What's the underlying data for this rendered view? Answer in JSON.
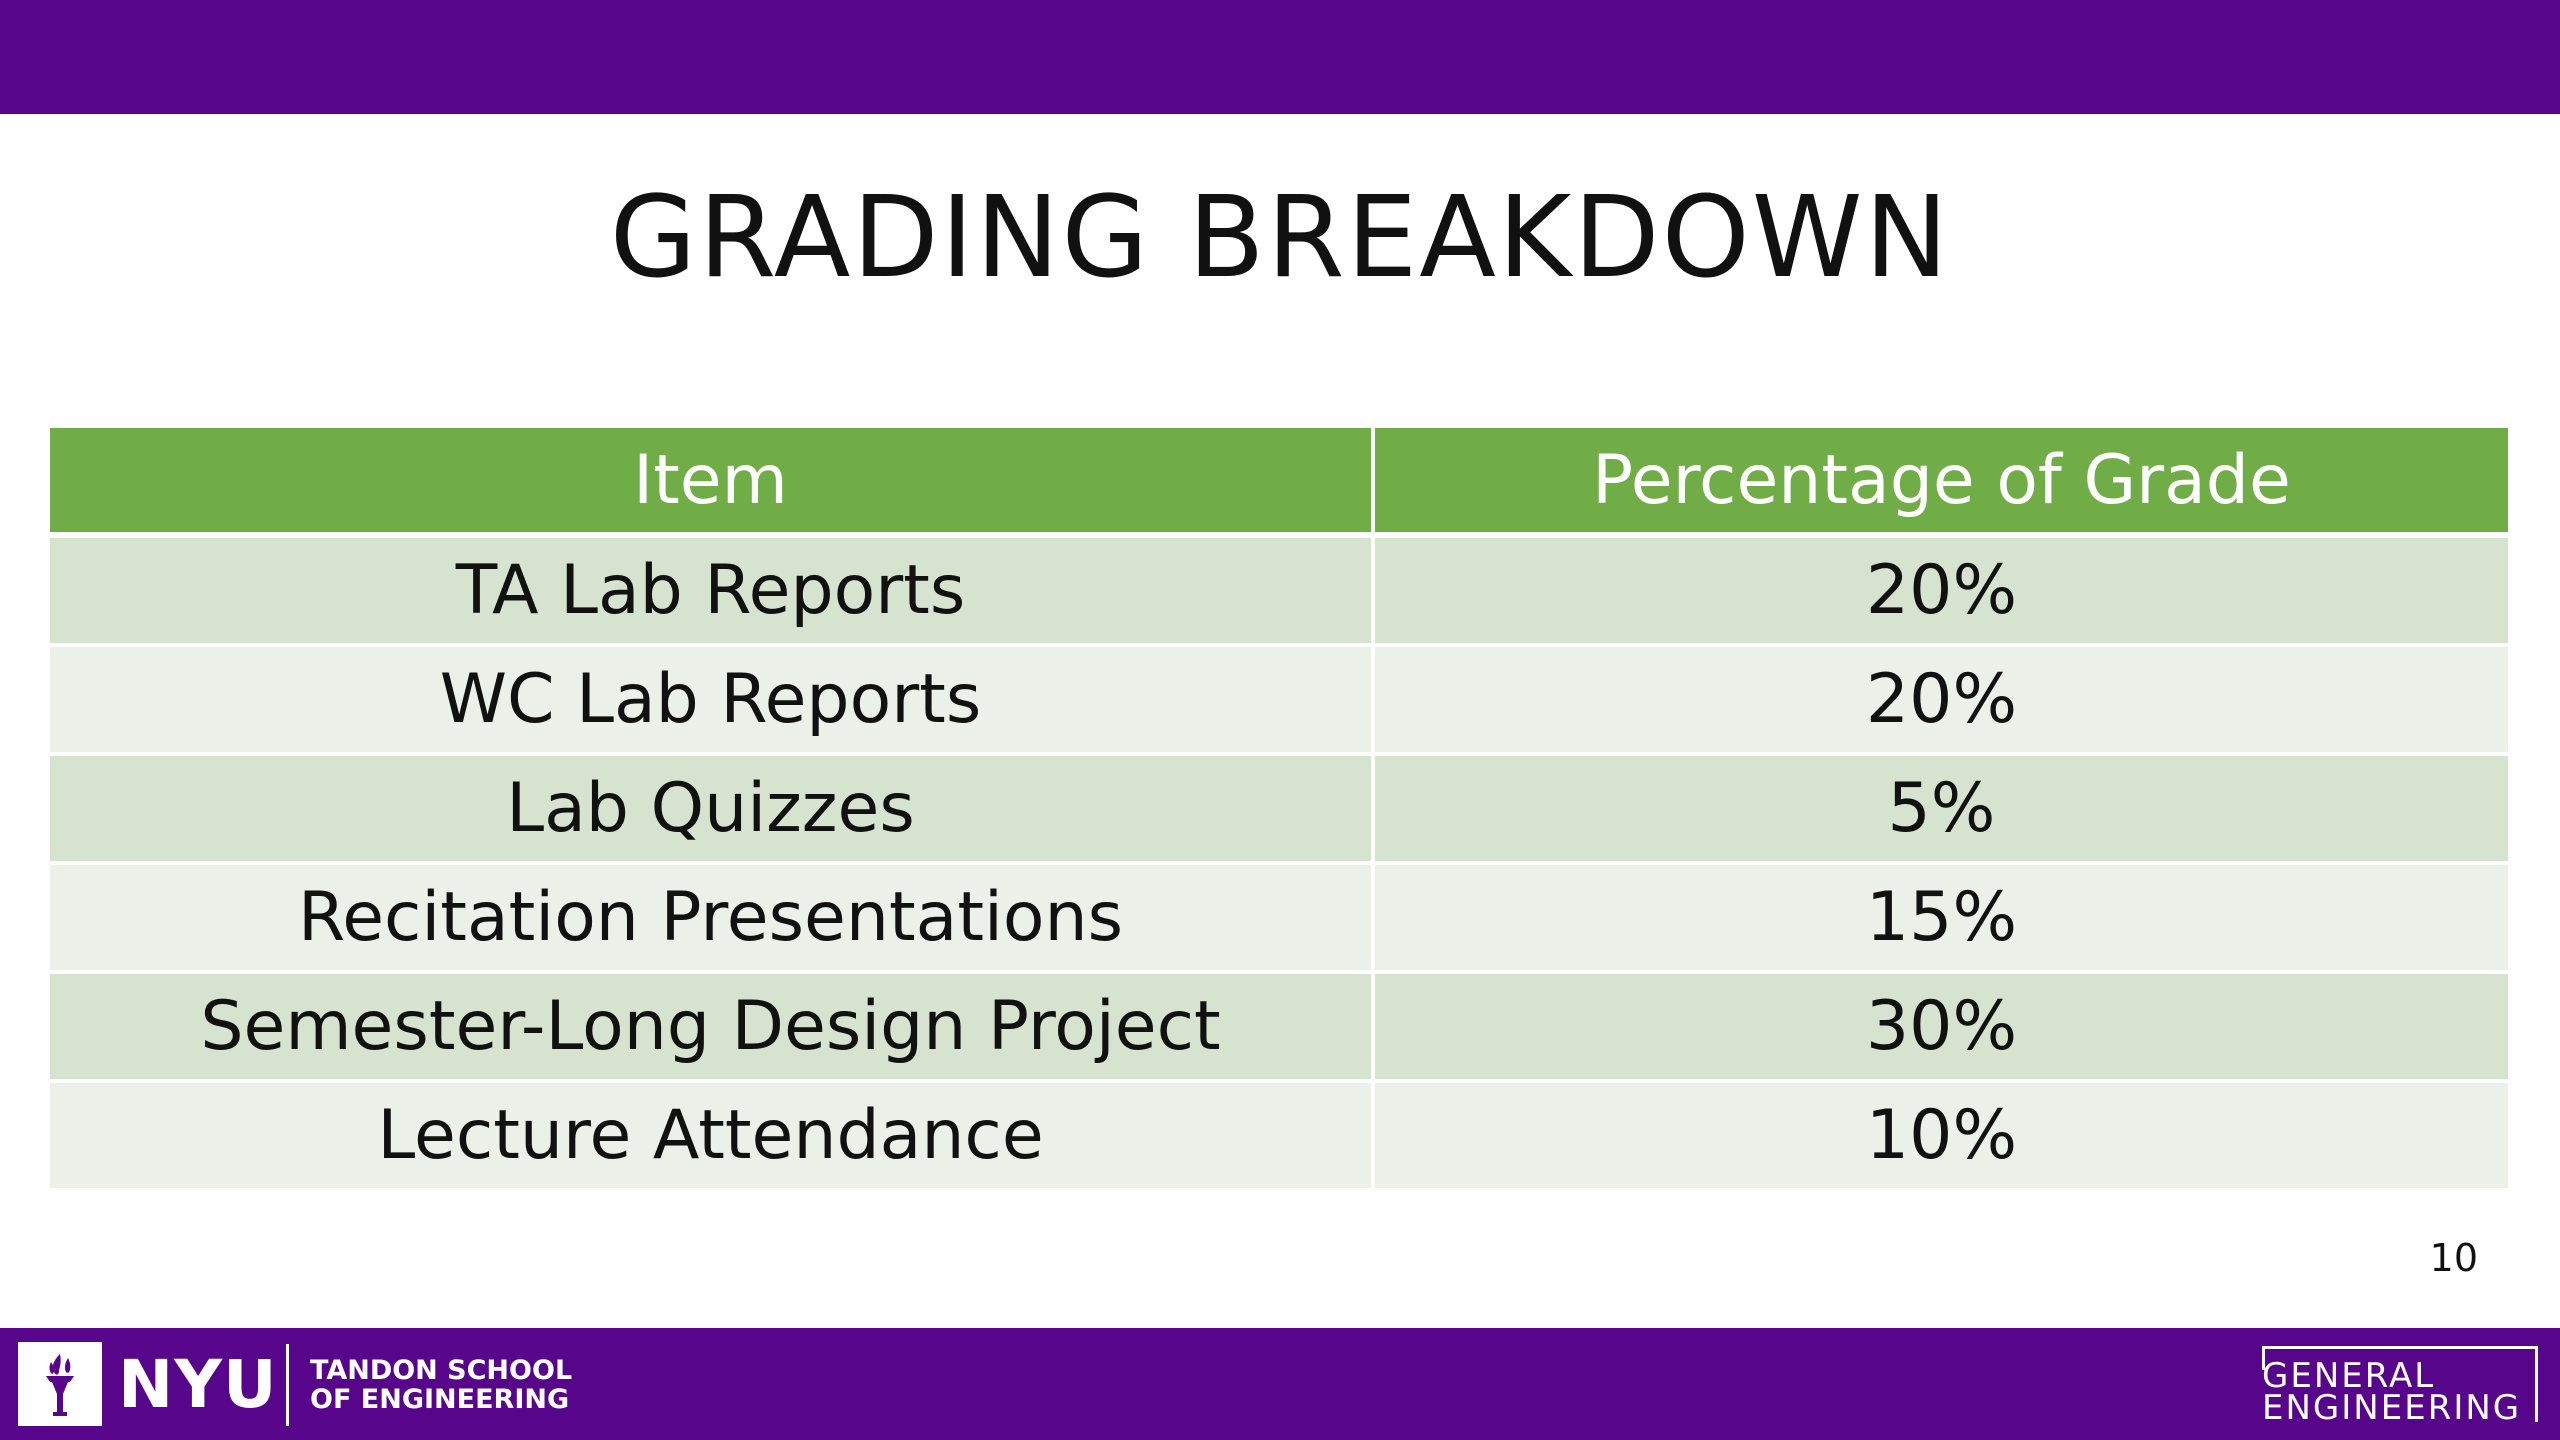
{
  "slide": {
    "title": "GRADING BREAKDOWN",
    "page_number": "10"
  },
  "table": {
    "headers": [
      "Item",
      "Percentage of Grade"
    ],
    "rows": [
      {
        "item": "TA Lab Reports",
        "percentage": "20%"
      },
      {
        "item": "WC Lab Reports",
        "percentage": "20%"
      },
      {
        "item": "Lab Quizzes",
        "percentage": "5%"
      },
      {
        "item": "Recitation Presentations",
        "percentage": "15%"
      },
      {
        "item": "Semester-Long Design Project",
        "percentage": "30%"
      },
      {
        "item": "Lecture Attendance",
        "percentage": "10%"
      }
    ]
  },
  "footer": {
    "logo_icon": "torch-icon",
    "nyu_label": "NYU",
    "school_line1": "TANDON SCHOOL",
    "school_line2": "OF ENGINEERING",
    "dept_line1": "GENERAL",
    "dept_line2": "ENGINEERING"
  },
  "colors": {
    "brand_purple": "#57068c",
    "header_green": "#70ad47",
    "row_odd": "#d5e3cf",
    "row_even": "#ebf0e8"
  }
}
